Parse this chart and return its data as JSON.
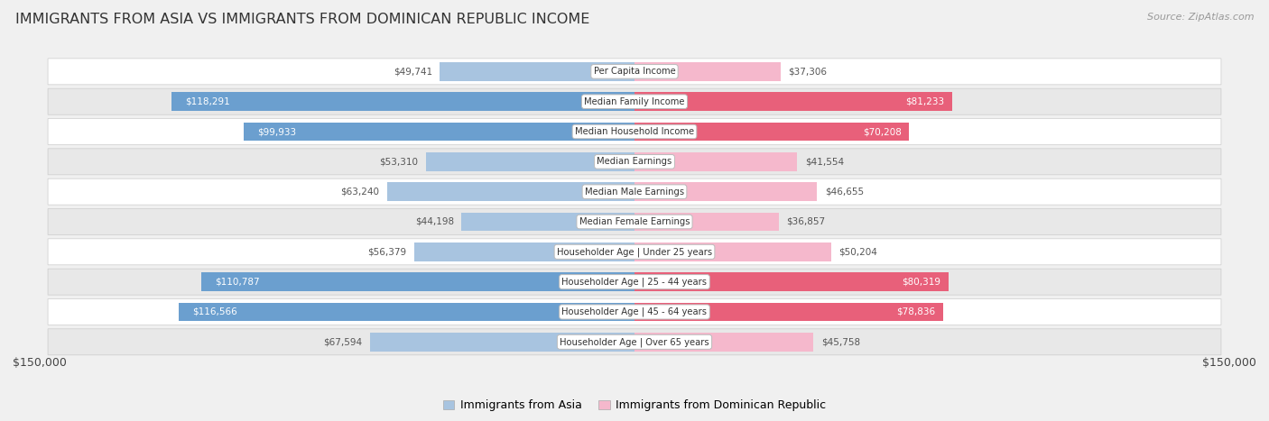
{
  "title": "IMMIGRANTS FROM ASIA VS IMMIGRANTS FROM DOMINICAN REPUBLIC INCOME",
  "source": "Source: ZipAtlas.com",
  "categories": [
    "Per Capita Income",
    "Median Family Income",
    "Median Household Income",
    "Median Earnings",
    "Median Male Earnings",
    "Median Female Earnings",
    "Householder Age | Under 25 years",
    "Householder Age | 25 - 44 years",
    "Householder Age | 45 - 64 years",
    "Householder Age | Over 65 years"
  ],
  "asia_values": [
    49741,
    118291,
    99933,
    53310,
    63240,
    44198,
    56379,
    110787,
    116566,
    67594
  ],
  "dr_values": [
    37306,
    81233,
    70208,
    41554,
    46655,
    36857,
    50204,
    80319,
    78836,
    45758
  ],
  "max_value": 150000,
  "asia_color_light": "#a8c4e0",
  "asia_color_dark": "#6b9fcf",
  "dr_color_light": "#f5b8cc",
  "dr_color_dark": "#e8607a",
  "bg_color": "#f0f0f0",
  "row_bg_light": "#ffffff",
  "row_bg_dark": "#e8e8e8",
  "legend_asia": "Immigrants from Asia",
  "legend_dr": "Immigrants from Dominican Republic",
  "axis_label_left": "$150,000",
  "axis_label_right": "$150,000",
  "asia_inside_threshold": 80000,
  "dr_inside_threshold": 60000
}
